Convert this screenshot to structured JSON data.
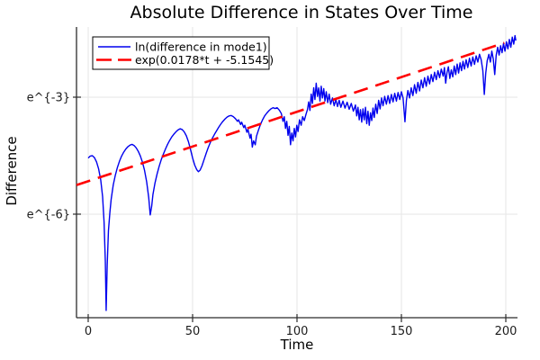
{
  "chart_data": {
    "type": "line",
    "title": "Absolute Difference in States Over Time",
    "xlabel": "Time",
    "ylabel": "Difference",
    "grid": true,
    "legend_position": "top-left",
    "x_ticks": [
      0,
      50,
      100,
      150,
      200
    ],
    "y_ticks": [
      {
        "value": -3,
        "label": "e^{-3}"
      },
      {
        "value": -6,
        "label": "e^{-6}"
      }
    ],
    "xlim": [
      -5.6,
      205.6
    ],
    "ylim_ln": [
      -8.655,
      -1.2
    ],
    "y_scale": "natural-log",
    "colors": {
      "background": "#ffffff",
      "grid": "#e5e5e5",
      "axis": "#2b2b2b",
      "series1": "#0000ee",
      "series2": "#ff0000"
    },
    "series": [
      {
        "name": "ln(difference in mode1)",
        "color": "#0000ee",
        "style": "solid",
        "points": [
          [
            0,
            -4.56
          ],
          [
            1,
            -4.51
          ],
          [
            2,
            -4.5
          ],
          [
            3,
            -4.55
          ],
          [
            4,
            -4.66
          ],
          [
            5,
            -4.84
          ],
          [
            6,
            -5.12
          ],
          [
            6.9,
            -5.55
          ],
          [
            7.6,
            -6.2
          ],
          [
            8.2,
            -7.2
          ],
          [
            8.6,
            -8.47
          ],
          [
            9.1,
            -7.3
          ],
          [
            9.7,
            -6.42
          ],
          [
            10.4,
            -5.95
          ],
          [
            11,
            -5.62
          ],
          [
            12,
            -5.25
          ],
          [
            13,
            -5.0
          ],
          [
            14,
            -4.8
          ],
          [
            15,
            -4.64
          ],
          [
            16,
            -4.51
          ],
          [
            17,
            -4.41
          ],
          [
            18,
            -4.33
          ],
          [
            19,
            -4.27
          ],
          [
            20,
            -4.23
          ],
          [
            21,
            -4.21
          ],
          [
            22,
            -4.24
          ],
          [
            23,
            -4.3
          ],
          [
            24,
            -4.39
          ],
          [
            25,
            -4.51
          ],
          [
            26,
            -4.67
          ],
          [
            27,
            -4.88
          ],
          [
            28,
            -5.17
          ],
          [
            29,
            -5.58
          ],
          [
            29.7,
            -6.02
          ],
          [
            30.4,
            -5.8
          ],
          [
            31,
            -5.5
          ],
          [
            32,
            -5.2
          ],
          [
            33,
            -4.97
          ],
          [
            34,
            -4.77
          ],
          [
            35,
            -4.6
          ],
          [
            36,
            -4.46
          ],
          [
            37,
            -4.33
          ],
          [
            38,
            -4.21
          ],
          [
            39,
            -4.11
          ],
          [
            40,
            -4.02
          ],
          [
            41,
            -3.95
          ],
          [
            42,
            -3.89
          ],
          [
            43,
            -3.84
          ],
          [
            44,
            -3.81
          ],
          [
            45,
            -3.83
          ],
          [
            46,
            -3.89
          ],
          [
            47,
            -3.99
          ],
          [
            48,
            -4.14
          ],
          [
            49,
            -4.34
          ],
          [
            50,
            -4.56
          ],
          [
            51,
            -4.74
          ],
          [
            52,
            -4.86
          ],
          [
            52.8,
            -4.91
          ],
          [
            53.6,
            -4.87
          ],
          [
            54.5,
            -4.76
          ],
          [
            55.5,
            -4.6
          ],
          [
            56.5,
            -4.44
          ],
          [
            57.5,
            -4.29
          ],
          [
            58.5,
            -4.16
          ],
          [
            59.5,
            -4.05
          ],
          [
            60.5,
            -3.95
          ],
          [
            61.5,
            -3.86
          ],
          [
            62.5,
            -3.77
          ],
          [
            63.5,
            -3.69
          ],
          [
            64.5,
            -3.62
          ],
          [
            65.5,
            -3.56
          ],
          [
            66.5,
            -3.51
          ],
          [
            67.5,
            -3.48
          ],
          [
            68.5,
            -3.47
          ],
          [
            69.5,
            -3.5
          ],
          [
            70.5,
            -3.55
          ],
          [
            71.5,
            -3.62
          ],
          [
            72,
            -3.58
          ],
          [
            73,
            -3.7
          ],
          [
            73.5,
            -3.64
          ],
          [
            74.5,
            -3.78
          ],
          [
            75,
            -3.72
          ],
          [
            76,
            -3.9
          ],
          [
            76.5,
            -3.82
          ],
          [
            77.5,
            -4.05
          ],
          [
            78,
            -3.95
          ],
          [
            78.6,
            -4.28
          ],
          [
            79.2,
            -4.12
          ],
          [
            80,
            -4.22
          ],
          [
            80.6,
            -4.0
          ],
          [
            81.5,
            -3.85
          ],
          [
            82.5,
            -3.7
          ],
          [
            83.5,
            -3.58
          ],
          [
            84.5,
            -3.48
          ],
          [
            85.5,
            -3.41
          ],
          [
            86.5,
            -3.35
          ],
          [
            87.5,
            -3.3
          ],
          [
            88.5,
            -3.27
          ],
          [
            89.5,
            -3.29
          ],
          [
            90.5,
            -3.27
          ],
          [
            91.5,
            -3.33
          ],
          [
            92.5,
            -3.42
          ],
          [
            93.3,
            -3.62
          ],
          [
            93.9,
            -3.5
          ],
          [
            94.5,
            -3.8
          ],
          [
            95.1,
            -3.62
          ],
          [
            95.7,
            -3.98
          ],
          [
            96.3,
            -3.75
          ],
          [
            96.9,
            -4.22
          ],
          [
            97.5,
            -3.92
          ],
          [
            98.1,
            -4.12
          ],
          [
            98.7,
            -3.8
          ],
          [
            99.3,
            -4.02
          ],
          [
            99.9,
            -3.72
          ],
          [
            100.5,
            -3.88
          ],
          [
            101.2,
            -3.58
          ],
          [
            102,
            -3.72
          ],
          [
            102.7,
            -3.5
          ],
          [
            103.5,
            -3.6
          ],
          [
            104.3,
            -3.44
          ],
          [
            105,
            -3.32
          ],
          [
            105.6,
            -3.12
          ],
          [
            106.2,
            -3.34
          ],
          [
            106.8,
            -2.92
          ],
          [
            107.4,
            -3.16
          ],
          [
            108,
            -2.76
          ],
          [
            108.6,
            -3.06
          ],
          [
            109.2,
            -2.64
          ],
          [
            109.8,
            -2.98
          ],
          [
            110.4,
            -2.76
          ],
          [
            111,
            -3.1
          ],
          [
            111.6,
            -2.72
          ],
          [
            112.2,
            -3.02
          ],
          [
            112.8,
            -2.78
          ],
          [
            113.4,
            -3.1
          ],
          [
            114,
            -2.86
          ],
          [
            114.7,
            -3.14
          ],
          [
            115.4,
            -2.92
          ],
          [
            116.1,
            -3.18
          ],
          [
            117,
            -3.02
          ],
          [
            117.8,
            -3.22
          ],
          [
            118.6,
            -3.06
          ],
          [
            119.4,
            -3.24
          ],
          [
            120.2,
            -3.08
          ],
          [
            121,
            -3.26
          ],
          [
            122,
            -3.1
          ],
          [
            123,
            -3.28
          ],
          [
            124,
            -3.13
          ],
          [
            125,
            -3.31
          ],
          [
            126,
            -3.16
          ],
          [
            127,
            -3.36
          ],
          [
            128,
            -3.2
          ],
          [
            128.6,
            -3.48
          ],
          [
            129.2,
            -3.26
          ],
          [
            129.8,
            -3.58
          ],
          [
            130.4,
            -3.32
          ],
          [
            131,
            -3.64
          ],
          [
            131.6,
            -3.3
          ],
          [
            132.2,
            -3.58
          ],
          [
            132.8,
            -3.26
          ],
          [
            133.4,
            -3.68
          ],
          [
            134,
            -3.36
          ],
          [
            134.6,
            -3.72
          ],
          [
            135.2,
            -3.4
          ],
          [
            135.8,
            -3.6
          ],
          [
            136.4,
            -3.28
          ],
          [
            137,
            -3.52
          ],
          [
            137.7,
            -3.18
          ],
          [
            138.4,
            -3.42
          ],
          [
            139.1,
            -3.08
          ],
          [
            139.8,
            -3.3
          ],
          [
            140.5,
            -3.02
          ],
          [
            141.2,
            -3.22
          ],
          [
            142,
            -2.98
          ],
          [
            142.8,
            -3.18
          ],
          [
            143.6,
            -2.96
          ],
          [
            144.4,
            -3.16
          ],
          [
            145.2,
            -2.93
          ],
          [
            146,
            -3.12
          ],
          [
            146.8,
            -2.9
          ],
          [
            147.6,
            -3.1
          ],
          [
            148.4,
            -2.88
          ],
          [
            149.2,
            -3.06
          ],
          [
            150,
            -2.86
          ],
          [
            150.8,
            -3.02
          ],
          [
            151.7,
            -3.63
          ],
          [
            152.4,
            -3.08
          ],
          [
            153.1,
            -2.83
          ],
          [
            153.9,
            -3.02
          ],
          [
            154.7,
            -2.76
          ],
          [
            155.5,
            -2.96
          ],
          [
            156.3,
            -2.68
          ],
          [
            157.1,
            -2.9
          ],
          [
            157.9,
            -2.62
          ],
          [
            158.7,
            -2.84
          ],
          [
            159.5,
            -2.56
          ],
          [
            160.3,
            -2.76
          ],
          [
            161.1,
            -2.5
          ],
          [
            161.9,
            -2.72
          ],
          [
            162.7,
            -2.46
          ],
          [
            163.5,
            -2.66
          ],
          [
            164.3,
            -2.42
          ],
          [
            165.1,
            -2.6
          ],
          [
            165.9,
            -2.36
          ],
          [
            166.7,
            -2.55
          ],
          [
            167.5,
            -2.32
          ],
          [
            168.3,
            -2.5
          ],
          [
            169.1,
            -2.28
          ],
          [
            170,
            -2.46
          ],
          [
            170.6,
            -2.24
          ],
          [
            171.2,
            -2.64
          ],
          [
            171.8,
            -2.38
          ],
          [
            172.5,
            -2.22
          ],
          [
            173.2,
            -2.52
          ],
          [
            173.9,
            -2.3
          ],
          [
            174.6,
            -2.48
          ],
          [
            175.3,
            -2.2
          ],
          [
            176,
            -2.42
          ],
          [
            176.7,
            -2.15
          ],
          [
            177.4,
            -2.38
          ],
          [
            178.1,
            -2.12
          ],
          [
            178.8,
            -2.32
          ],
          [
            179.5,
            -2.08
          ],
          [
            180.2,
            -2.28
          ],
          [
            181,
            -2.04
          ],
          [
            181.8,
            -2.24
          ],
          [
            182.6,
            -2.0
          ],
          [
            183.4,
            -2.2
          ],
          [
            184.2,
            -1.97
          ],
          [
            185,
            -2.16
          ],
          [
            185.8,
            -1.94
          ],
          [
            186.6,
            -2.1
          ],
          [
            187.4,
            -1.9
          ],
          [
            188.2,
            -2.04
          ],
          [
            189,
            -2.32
          ],
          [
            189.7,
            -2.93
          ],
          [
            190.4,
            -2.38
          ],
          [
            191.1,
            -2.06
          ],
          [
            191.9,
            -1.9
          ],
          [
            192.6,
            -2.1
          ],
          [
            193.3,
            -1.82
          ],
          [
            194,
            -2.02
          ],
          [
            194.7,
            -2.42
          ],
          [
            195.4,
            -1.92
          ],
          [
            196.1,
            -1.72
          ],
          [
            196.8,
            -1.92
          ],
          [
            197.5,
            -1.68
          ],
          [
            198.2,
            -1.86
          ],
          [
            198.9,
            -1.62
          ],
          [
            199.6,
            -1.82
          ],
          [
            200.3,
            -1.58
          ],
          [
            201,
            -1.76
          ],
          [
            201.7,
            -1.52
          ],
          [
            202.4,
            -1.72
          ],
          [
            203.1,
            -1.46
          ],
          [
            203.8,
            -1.64
          ],
          [
            204.4,
            -1.42
          ],
          [
            204.8,
            -1.55
          ]
        ]
      },
      {
        "name": "exp(0.0178*t + -5.1545)",
        "color": "#ff0000",
        "style": "dashed",
        "fit": {
          "slope": 0.0178,
          "intercept": -5.1545
        },
        "points": [
          [
            -5.6,
            -5.2542
          ],
          [
            199.3,
            -1.6069
          ]
        ]
      }
    ]
  }
}
